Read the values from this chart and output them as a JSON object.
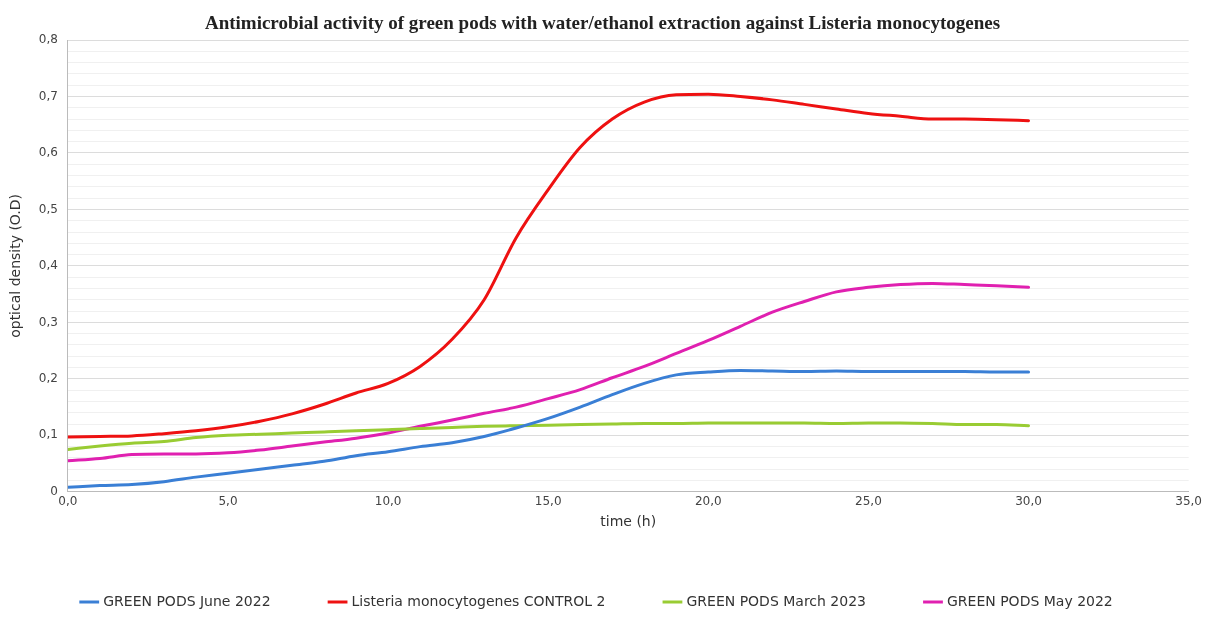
{
  "chart_data": {
    "type": "line",
    "title": "Antimicrobial activity of green pods with water/ethanol extraction against Listeria monocytogenes",
    "xlabel": "time (h)",
    "ylabel": "optical density (O.D)",
    "x": [
      0,
      1,
      2,
      3,
      4,
      5,
      6,
      7,
      8,
      9,
      10,
      11,
      12,
      13,
      14,
      15,
      16,
      17,
      18,
      19,
      20,
      21,
      22,
      23,
      24,
      25,
      26,
      27,
      28,
      29,
      30
    ],
    "series": [
      {
        "name": "GREEN PODS June 2022",
        "color": "#3a7fd5",
        "values": [
          0.008,
          0.011,
          0.013,
          0.018,
          0.026,
          0.033,
          0.04,
          0.047,
          0.054,
          0.064,
          0.071,
          0.08,
          0.087,
          0.098,
          0.113,
          0.13,
          0.15,
          0.172,
          0.192,
          0.207,
          0.212,
          0.215,
          0.214,
          0.213,
          0.214,
          0.213,
          0.213,
          0.213,
          0.213,
          0.212,
          0.212
        ]
      },
      {
        "name": "Listeria monocytogenes CONTROL 2",
        "color": "#ee1111",
        "values": [
          0.097,
          0.098,
          0.099,
          0.103,
          0.108,
          0.115,
          0.125,
          0.138,
          0.155,
          0.175,
          0.192,
          0.222,
          0.27,
          0.34,
          0.45,
          0.535,
          0.61,
          0.66,
          0.69,
          0.703,
          0.704,
          0.7,
          0.694,
          0.686,
          0.678,
          0.67,
          0.665,
          0.66,
          0.66,
          0.659,
          0.657
        ]
      },
      {
        "name": "GREEN PODS March 2023",
        "color": "#99cc33",
        "values": [
          0.075,
          0.081,
          0.086,
          0.089,
          0.096,
          0.1,
          0.102,
          0.104,
          0.106,
          0.108,
          0.11,
          0.112,
          0.114,
          0.116,
          0.117,
          0.118,
          0.119,
          0.12,
          0.121,
          0.121,
          0.122,
          0.122,
          0.122,
          0.122,
          0.121,
          0.122,
          0.122,
          0.121,
          0.119,
          0.119,
          0.117
        ]
      },
      {
        "name": "GREEN PODS May 2022",
        "color": "#e020b0",
        "values": [
          0.055,
          0.059,
          0.066,
          0.067,
          0.067,
          0.069,
          0.074,
          0.081,
          0.088,
          0.095,
          0.104,
          0.116,
          0.127,
          0.139,
          0.15,
          0.165,
          0.181,
          0.202,
          0.222,
          0.245,
          0.268,
          0.293,
          0.318,
          0.337,
          0.354,
          0.362,
          0.367,
          0.369,
          0.367,
          0.365,
          0.362
        ]
      }
    ],
    "xlim": [
      0,
      35
    ],
    "xticks": [
      {
        "value": 0,
        "label": "0,0"
      },
      {
        "value": 5,
        "label": "5,0"
      },
      {
        "value": 10,
        "label": "10,0"
      },
      {
        "value": 15,
        "label": "15,0"
      },
      {
        "value": 20,
        "label": "20,0"
      },
      {
        "value": 25,
        "label": "25,0"
      },
      {
        "value": 30,
        "label": "30,0"
      },
      {
        "value": 35,
        "label": "35,0"
      }
    ],
    "ylim": [
      0,
      0.8
    ],
    "yticks": [
      0,
      {
        "value": 0.02,
        "label": null
      },
      {
        "value": 0.04,
        "label": null
      },
      {
        "value": 0.06,
        "label": null
      },
      {
        "value": 0.08,
        "label": null
      },
      {
        "value": 0.1,
        "label": "0,1"
      },
      {
        "value": 0.12,
        "label": null
      },
      {
        "value": 0.14,
        "label": null
      },
      {
        "value": 0.16,
        "label": null
      },
      {
        "value": 0.18,
        "label": null
      },
      {
        "value": 0.2,
        "label": "0,2"
      },
      {
        "value": 0.22,
        "label": null
      },
      {
        "value": 0.24,
        "label": null
      },
      {
        "value": 0.26,
        "label": null
      },
      {
        "value": 0.28,
        "label": null
      },
      {
        "value": 0.3,
        "label": "0,3"
      },
      {
        "value": 0.32,
        "label": null
      },
      {
        "value": 0.34,
        "label": null
      },
      {
        "value": 0.36,
        "label": null
      },
      {
        "value": 0.38,
        "label": null
      },
      {
        "value": 0.4,
        "label": "0,4"
      },
      {
        "value": 0.42,
        "label": null
      },
      {
        "value": 0.44,
        "label": null
      },
      {
        "value": 0.46,
        "label": null
      },
      {
        "value": 0.48,
        "label": null
      },
      {
        "value": 0.5,
        "label": "0,5"
      },
      {
        "value": 0.52,
        "label": null
      },
      {
        "value": 0.54,
        "label": null
      },
      {
        "value": 0.56,
        "label": null
      },
      {
        "value": 0.58,
        "label": null
      },
      {
        "value": 0.6,
        "label": "0,6"
      },
      {
        "value": 0.62,
        "label": null
      },
      {
        "value": 0.64,
        "label": null
      },
      {
        "value": 0.66,
        "label": null
      },
      {
        "value": 0.68,
        "label": null
      },
      {
        "value": 0.7,
        "label": "0,7"
      },
      {
        "value": 0.72,
        "label": null
      },
      {
        "value": 0.74,
        "label": null
      },
      {
        "value": 0.76,
        "label": null
      },
      {
        "value": 0.78,
        "label": null
      },
      {
        "value": 0.8,
        "label": "0,8"
      }
    ],
    "grid": "y",
    "legend": "bottom",
    "line_style": "solid"
  }
}
